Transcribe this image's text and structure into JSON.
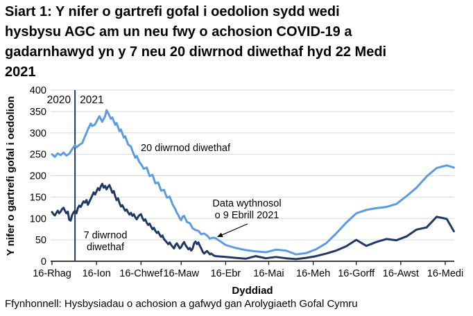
{
  "title_lines": [
    "Siart 1: Y nifer o gartrefi gofal i oedolion sydd wedi",
    "hysbysu AGC am un neu fwy o achosion COVID-19 a",
    "gadarnhawyd yn y 7 neu 20 diwrnod diwethaf hyd 22 Medi",
    "2021"
  ],
  "source": "Ffynhonnell: Hysbysiadau o achosion a gafwyd gan Arolygiaeth Gofal Cymru",
  "chart_data": {
    "type": "line",
    "title": "Siart 1: Y nifer o gartrefi gofal i oedolion sydd wedi hysbysu AGC am un neu fwy o achosion COVID-19 a gadarnhawyd yn y 7 neu 20 diwrnod diwethaf hyd 22 Medi 2021",
    "xlabel": "Dyddiad",
    "ylabel": "Y nifer o gartrefi gofal i oedolion",
    "ylim": [
      0,
      400
    ],
    "y_ticks": [
      0,
      50,
      100,
      150,
      200,
      250,
      300,
      350,
      400
    ],
    "grid": true,
    "legend_position": "inline-labels",
    "x_unit": "days since 16 Rhagfyr 2020; daily data to 9 Ebrill 2021 then weekly to 22 Medi 2021",
    "x_ticks": [
      {
        "day": 0,
        "label": "16-Rhag"
      },
      {
        "day": 31,
        "label": "16-Ion"
      },
      {
        "day": 62,
        "label": "16-Chwef"
      },
      {
        "day": 90,
        "label": "16-Maw"
      },
      {
        "day": 121,
        "label": "16-Ebr"
      },
      {
        "day": 151,
        "label": "16-Mai"
      },
      {
        "day": 182,
        "label": "16-Meh"
      },
      {
        "day": 212,
        "label": "16-Gorff"
      },
      {
        "day": 243,
        "label": "16-Awst"
      },
      {
        "day": 274,
        "label": "16-Medi"
      }
    ],
    "x_range_days": [
      0,
      280
    ],
    "divider": {
      "day": 16,
      "left_label": "2020",
      "right_label": "2021"
    },
    "annotation": {
      "line1": "Data wythnosol",
      "line2": "o 9 Ebrill 2021",
      "target_day": 114,
      "target_value": 54
    },
    "colors": {
      "grid": "#D9D9D9",
      "axis": "#000000",
      "divider": "#1F3864",
      "text": "#000000"
    },
    "series": [
      {
        "name": "20 diwrnod diwethaf",
        "color": "#5B9BE1",
        "points": [
          [
            0,
            250
          ],
          [
            2,
            244
          ],
          [
            4,
            252
          ],
          [
            6,
            248
          ],
          [
            8,
            254
          ],
          [
            10,
            247
          ],
          [
            12,
            251
          ],
          [
            14,
            262
          ],
          [
            16,
            271
          ],
          [
            17,
            266
          ],
          [
            19,
            272
          ],
          [
            21,
            276
          ],
          [
            23,
            292
          ],
          [
            25,
            308
          ],
          [
            27,
            322
          ],
          [
            28,
            316
          ],
          [
            30,
            320
          ],
          [
            32,
            333
          ],
          [
            33,
            339
          ],
          [
            35,
            326
          ],
          [
            37,
            339
          ],
          [
            38,
            353
          ],
          [
            39,
            347
          ],
          [
            41,
            333
          ],
          [
            42,
            336
          ],
          [
            44,
            319
          ],
          [
            45,
            323
          ],
          [
            47,
            304
          ],
          [
            48,
            308
          ],
          [
            50,
            289
          ],
          [
            51,
            292
          ],
          [
            53,
            273
          ],
          [
            55,
            268
          ],
          [
            56,
            258
          ],
          [
            58,
            242
          ],
          [
            59,
            246
          ],
          [
            61,
            231
          ],
          [
            62,
            227
          ],
          [
            64,
            216
          ],
          [
            66,
            219
          ],
          [
            68,
            199
          ],
          [
            70,
            202
          ],
          [
            72,
            182
          ],
          [
            74,
            184
          ],
          [
            76,
            165
          ],
          [
            78,
            167
          ],
          [
            80,
            149
          ],
          [
            82,
            151
          ],
          [
            84,
            133
          ],
          [
            85,
            127
          ],
          [
            86,
            121
          ],
          [
            87,
            113
          ],
          [
            88,
            108
          ],
          [
            89,
            100
          ],
          [
            90,
            96
          ],
          [
            91,
            104
          ],
          [
            92,
            106
          ],
          [
            94,
            92
          ],
          [
            96,
            89
          ],
          [
            98,
            77
          ],
          [
            100,
            73
          ],
          [
            102,
            71
          ],
          [
            104,
            63
          ],
          [
            106,
            65
          ],
          [
            108,
            60
          ],
          [
            110,
            53
          ],
          [
            112,
            55
          ],
          [
            114,
            54
          ],
          [
            121,
            38
          ],
          [
            128,
            31
          ],
          [
            135,
            26
          ],
          [
            142,
            23
          ],
          [
            149,
            21
          ],
          [
            156,
            27
          ],
          [
            163,
            25
          ],
          [
            170,
            16
          ],
          [
            177,
            19
          ],
          [
            184,
            28
          ],
          [
            191,
            42
          ],
          [
            198,
            65
          ],
          [
            205,
            90
          ],
          [
            212,
            112
          ],
          [
            219,
            120
          ],
          [
            226,
            124
          ],
          [
            233,
            127
          ],
          [
            240,
            134
          ],
          [
            247,
            152
          ],
          [
            254,
            172
          ],
          [
            261,
            198
          ],
          [
            268,
            218
          ],
          [
            275,
            224
          ],
          [
            280,
            219
          ]
        ]
      },
      {
        "name": "7 diwrnod diwethaf",
        "color": "#1F3864",
        "points": [
          [
            0,
            115
          ],
          [
            1,
            110
          ],
          [
            2,
            107
          ],
          [
            3,
            113
          ],
          [
            4,
            118
          ],
          [
            5,
            112
          ],
          [
            6,
            116
          ],
          [
            7,
            122
          ],
          [
            8,
            125
          ],
          [
            9,
            118
          ],
          [
            10,
            112
          ],
          [
            11,
            116
          ],
          [
            12,
            97
          ],
          [
            13,
            95
          ],
          [
            14,
            108
          ],
          [
            15,
            114
          ],
          [
            16,
            118
          ],
          [
            17,
            112
          ],
          [
            18,
            124
          ],
          [
            19,
            130
          ],
          [
            20,
            127
          ],
          [
            21,
            134
          ],
          [
            22,
            140
          ],
          [
            23,
            137
          ],
          [
            24,
            143
          ],
          [
            25,
            132
          ],
          [
            26,
            139
          ],
          [
            27,
            146
          ],
          [
            28,
            153
          ],
          [
            29,
            161
          ],
          [
            30,
            156
          ],
          [
            31,
            163
          ],
          [
            32,
            171
          ],
          [
            33,
            166
          ],
          [
            34,
            175
          ],
          [
            35,
            181
          ],
          [
            36,
            172
          ],
          [
            37,
            176
          ],
          [
            38,
            168
          ],
          [
            39,
            174
          ],
          [
            40,
            178
          ],
          [
            41,
            170
          ],
          [
            42,
            160
          ],
          [
            43,
            164
          ],
          [
            44,
            152
          ],
          [
            45,
            143
          ],
          [
            46,
            147
          ],
          [
            47,
            136
          ],
          [
            48,
            128
          ],
          [
            49,
            131
          ],
          [
            50,
            124
          ],
          [
            51,
            118
          ],
          [
            52,
            121
          ],
          [
            53,
            114
          ],
          [
            54,
            109
          ],
          [
            55,
            113
          ],
          [
            56,
            106
          ],
          [
            57,
            110
          ],
          [
            58,
            103
          ],
          [
            59,
            98
          ],
          [
            60,
            104
          ],
          [
            61,
            108
          ],
          [
            62,
            110
          ],
          [
            63,
            101
          ],
          [
            64,
            95
          ],
          [
            65,
            98
          ],
          [
            66,
            90
          ],
          [
            67,
            85
          ],
          [
            68,
            88
          ],
          [
            69,
            81
          ],
          [
            70,
            75
          ],
          [
            71,
            78
          ],
          [
            72,
            71
          ],
          [
            73,
            66
          ],
          [
            74,
            69
          ],
          [
            75,
            62
          ],
          [
            76,
            57
          ],
          [
            77,
            60
          ],
          [
            78,
            52
          ],
          [
            79,
            48
          ],
          [
            80,
            44
          ],
          [
            81,
            40
          ],
          [
            82,
            44
          ],
          [
            83,
            38
          ],
          [
            84,
            34
          ],
          [
            85,
            30
          ],
          [
            86,
            38
          ],
          [
            87,
            42
          ],
          [
            88,
            36
          ],
          [
            89,
            30
          ],
          [
            90,
            33
          ],
          [
            91,
            40
          ],
          [
            92,
            45
          ],
          [
            93,
            38
          ],
          [
            94,
            33
          ],
          [
            95,
            28
          ],
          [
            96,
            31
          ],
          [
            97,
            25
          ],
          [
            98,
            30
          ],
          [
            99,
            42
          ],
          [
            100,
            46
          ],
          [
            101,
            40
          ],
          [
            102,
            44
          ],
          [
            103,
            36
          ],
          [
            104,
            30
          ],
          [
            105,
            22
          ],
          [
            106,
            18
          ],
          [
            107,
            21
          ],
          [
            108,
            24
          ],
          [
            109,
            20
          ],
          [
            110,
            16
          ],
          [
            111,
            18
          ],
          [
            112,
            15
          ],
          [
            113,
            13
          ],
          [
            114,
            12
          ],
          [
            121,
            10
          ],
          [
            128,
            8
          ],
          [
            135,
            6
          ],
          [
            142,
            12
          ],
          [
            149,
            7
          ],
          [
            156,
            10
          ],
          [
            163,
            7
          ],
          [
            170,
            5
          ],
          [
            177,
            8
          ],
          [
            184,
            12
          ],
          [
            191,
            18
          ],
          [
            198,
            25
          ],
          [
            205,
            35
          ],
          [
            212,
            50
          ],
          [
            219,
            36
          ],
          [
            226,
            45
          ],
          [
            233,
            52
          ],
          [
            240,
            49
          ],
          [
            247,
            58
          ],
          [
            254,
            74
          ],
          [
            261,
            79
          ],
          [
            268,
            104
          ],
          [
            275,
            99
          ],
          [
            280,
            70
          ]
        ]
      }
    ]
  }
}
